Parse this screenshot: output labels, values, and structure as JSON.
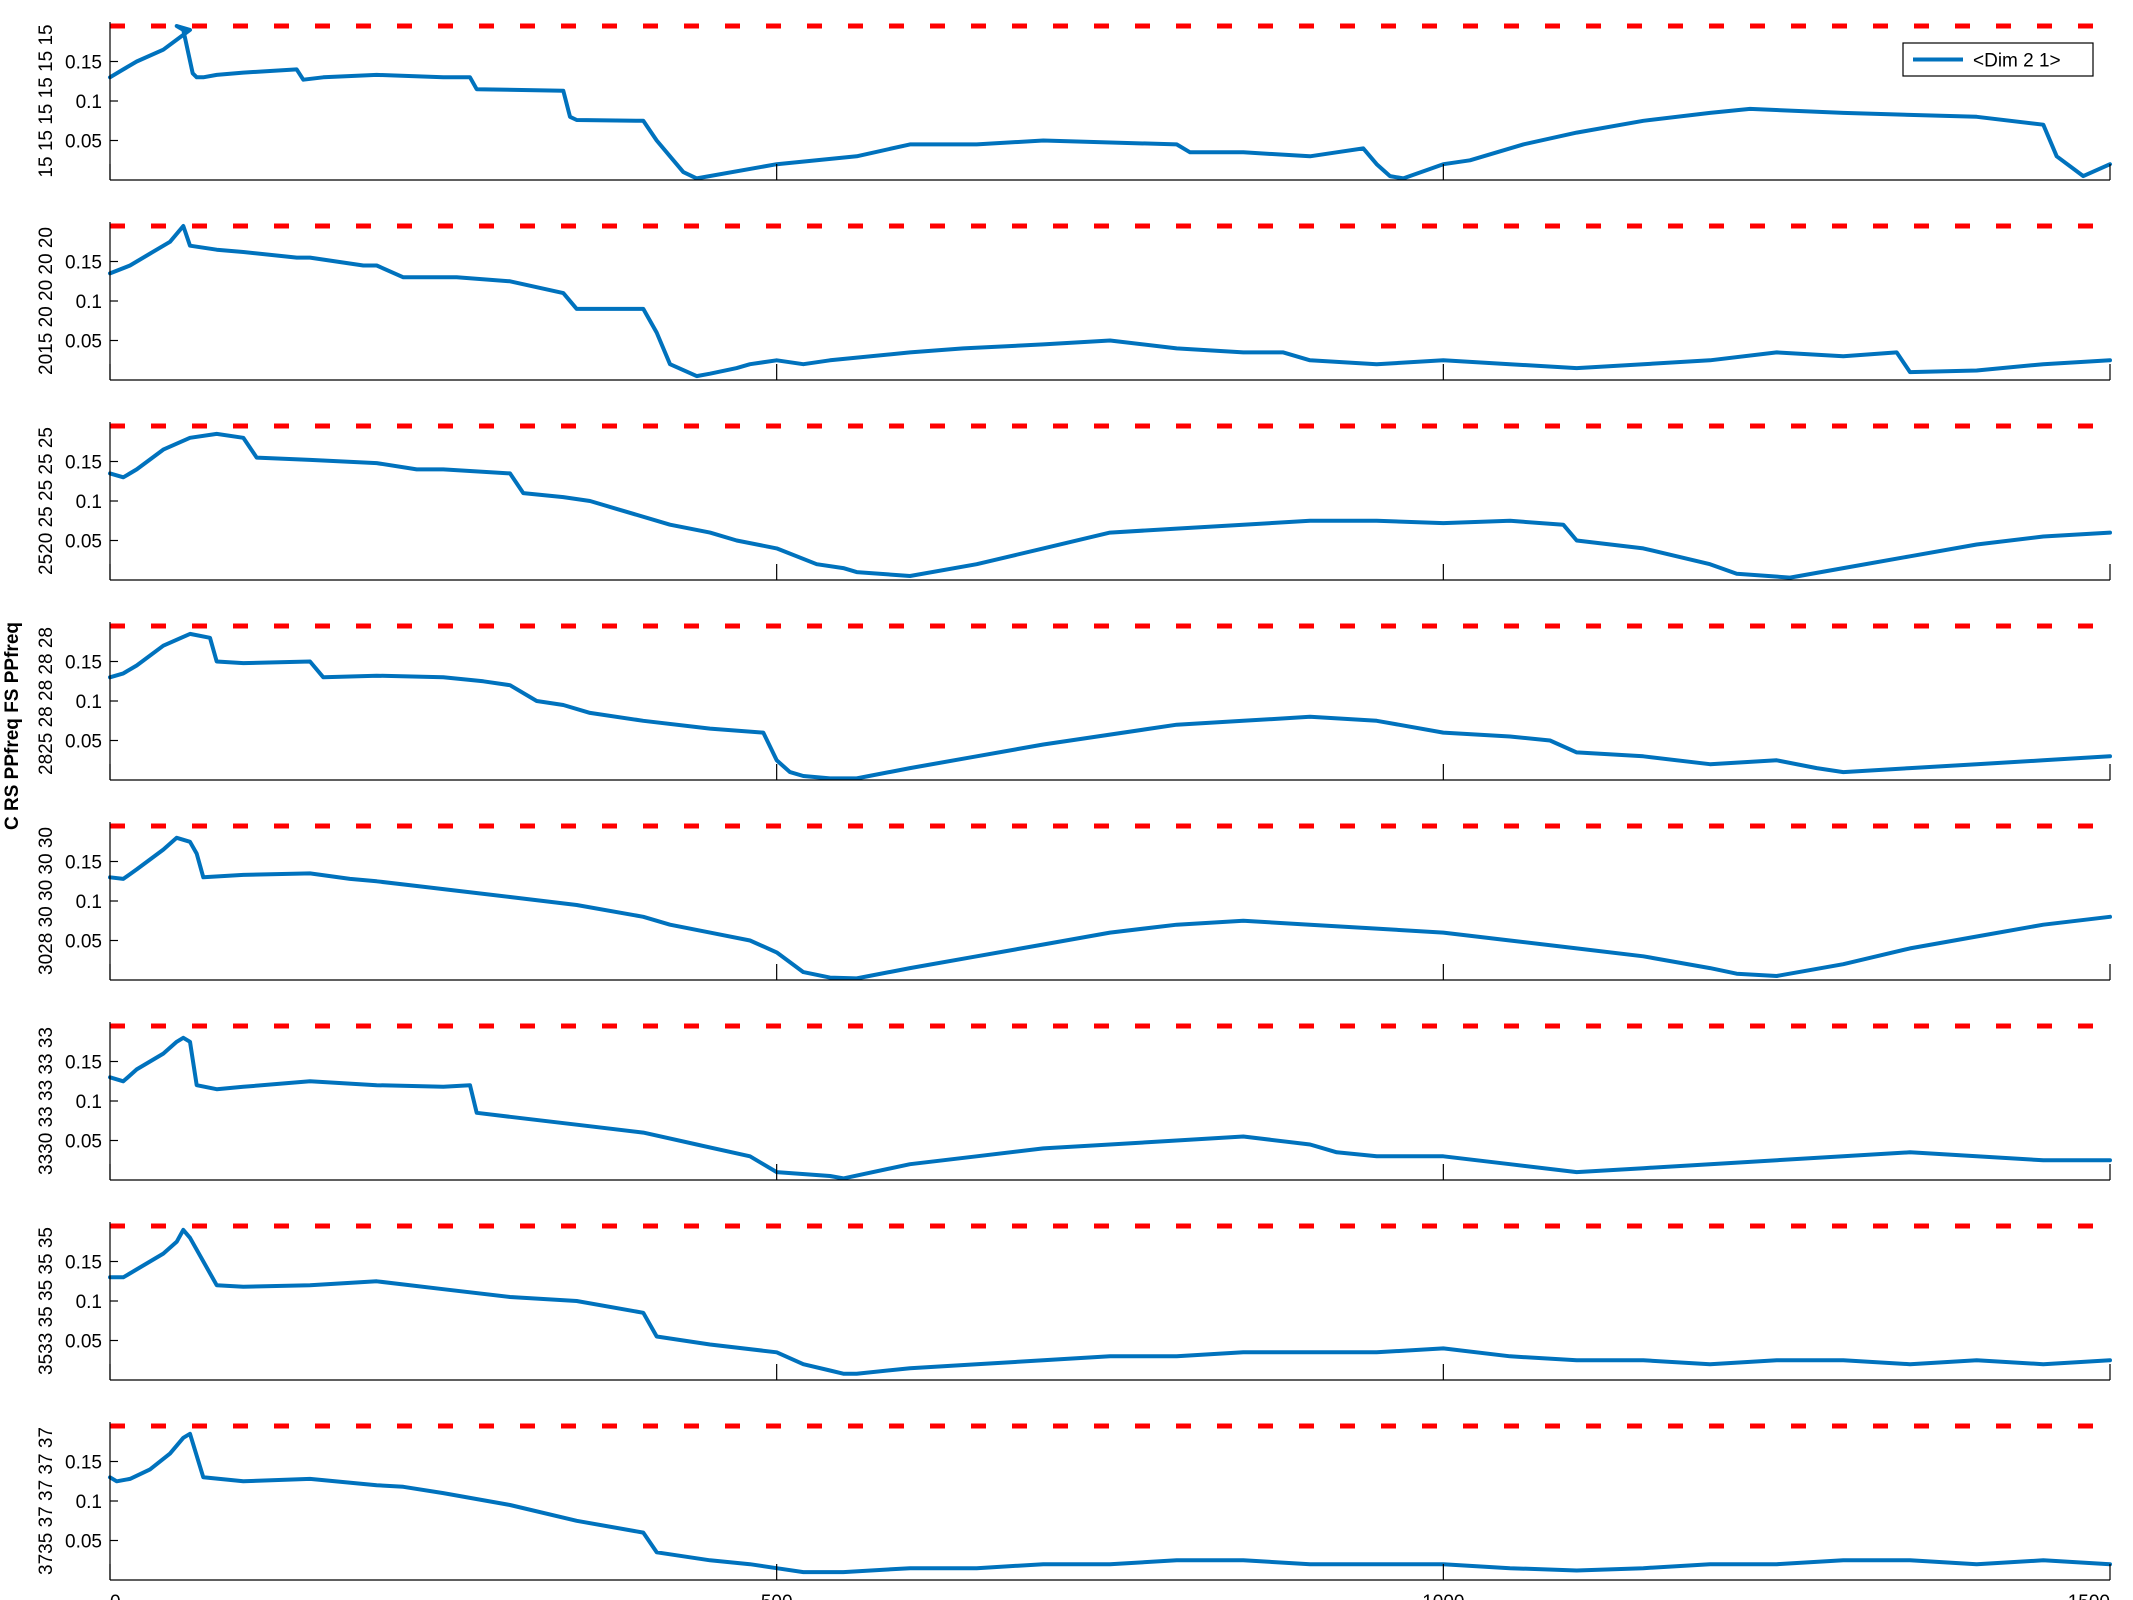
{
  "colors": {
    "series": "#0072BD",
    "threshold": "#FF0000",
    "axis": "#000000"
  },
  "y_axis_label": "C RS PPfreq FS PPfreq",
  "left_edge_labels": [
    "15 15 15 15 15 15",
    "2015 20 20 20 20",
    "2520 25 25 25 25",
    "2825 28 28 28 28",
    "3028 30 30 30 30",
    "3330 33 33 33 33",
    "3533 35 35 35 35",
    "3735 37 37 37 37"
  ],
  "chart_data": {
    "type": "line",
    "x_ticks": [
      0,
      500,
      1000,
      1500
    ],
    "y_ticks": [
      0.05,
      0.1,
      0.15
    ],
    "xlim": [
      0,
      1500
    ],
    "ylim": [
      0,
      0.2
    ],
    "legend": {
      "label": "<Dim 2 1>",
      "placement": "top-right",
      "panel": 0
    },
    "threshold": {
      "value": 0.195,
      "style": "dashed"
    },
    "panels": [
      {
        "series": {
          "x": [
            0,
            10,
            20,
            40,
            60,
            50,
            55,
            62,
            65,
            70,
            80,
            100,
            120,
            140,
            145,
            160,
            200,
            250,
            270,
            275,
            340,
            345,
            350,
            400,
            410,
            420,
            430,
            440,
            500,
            560,
            600,
            650,
            700,
            800,
            810,
            850,
            900,
            920,
            940,
            950,
            960,
            970,
            1000,
            1020,
            1060,
            1100,
            1150,
            1200,
            1230,
            1300,
            1400,
            1450,
            1460,
            1480,
            1500
          ],
          "y": [
            0.13,
            0.14,
            0.15,
            0.165,
            0.19,
            0.195,
            0.19,
            0.135,
            0.13,
            0.13,
            0.133,
            0.136,
            0.138,
            0.14,
            0.127,
            0.13,
            0.133,
            0.13,
            0.13,
            0.115,
            0.113,
            0.08,
            0.076,
            0.075,
            0.05,
            0.03,
            0.01,
            0.002,
            0.02,
            0.03,
            0.045,
            0.045,
            0.05,
            0.045,
            0.035,
            0.035,
            0.03,
            0.035,
            0.04,
            0.02,
            0.005,
            0.002,
            0.02,
            0.025,
            0.045,
            0.06,
            0.075,
            0.085,
            0.09,
            0.085,
            0.08,
            0.07,
            0.03,
            0.005,
            0.02
          ]
        }
      },
      {
        "series": {
          "x": [
            0,
            15,
            30,
            45,
            55,
            60,
            80,
            100,
            140,
            150,
            190,
            200,
            220,
            260,
            300,
            340,
            350,
            400,
            410,
            420,
            440,
            450,
            470,
            480,
            500,
            520,
            540,
            600,
            640,
            700,
            750,
            800,
            850,
            880,
            900,
            950,
            1000,
            1050,
            1100,
            1150,
            1200,
            1250,
            1300,
            1340,
            1350,
            1400,
            1450,
            1500
          ],
          "y": [
            0.135,
            0.145,
            0.16,
            0.175,
            0.195,
            0.17,
            0.165,
            0.162,
            0.155,
            0.155,
            0.145,
            0.145,
            0.13,
            0.13,
            0.125,
            0.11,
            0.09,
            0.09,
            0.06,
            0.02,
            0.005,
            0.008,
            0.015,
            0.02,
            0.025,
            0.02,
            0.025,
            0.035,
            0.04,
            0.045,
            0.05,
            0.04,
            0.035,
            0.035,
            0.025,
            0.02,
            0.025,
            0.02,
            0.015,
            0.02,
            0.025,
            0.035,
            0.03,
            0.035,
            0.01,
            0.012,
            0.02,
            0.025
          ]
        }
      },
      {
        "series": {
          "x": [
            0,
            10,
            20,
            40,
            60,
            80,
            100,
            110,
            150,
            200,
            230,
            250,
            300,
            310,
            340,
            360,
            380,
            420,
            450,
            470,
            500,
            530,
            550,
            560,
            600,
            650,
            700,
            750,
            800,
            850,
            900,
            950,
            1000,
            1050,
            1090,
            1100,
            1150,
            1200,
            1220,
            1260,
            1300,
            1350,
            1400,
            1450,
            1500
          ],
          "y": [
            0.135,
            0.13,
            0.14,
            0.165,
            0.18,
            0.185,
            0.18,
            0.155,
            0.152,
            0.148,
            0.14,
            0.14,
            0.135,
            0.11,
            0.105,
            0.1,
            0.09,
            0.07,
            0.06,
            0.05,
            0.04,
            0.02,
            0.015,
            0.01,
            0.005,
            0.02,
            0.04,
            0.06,
            0.065,
            0.07,
            0.075,
            0.075,
            0.072,
            0.075,
            0.07,
            0.05,
            0.04,
            0.02,
            0.008,
            0.003,
            0.015,
            0.03,
            0.045,
            0.055,
            0.06
          ]
        }
      },
      {
        "series": {
          "x": [
            0,
            10,
            20,
            40,
            60,
            75,
            80,
            100,
            150,
            160,
            200,
            250,
            280,
            300,
            320,
            340,
            360,
            400,
            450,
            490,
            500,
            510,
            520,
            540,
            560,
            600,
            650,
            700,
            800,
            850,
            900,
            950,
            1000,
            1050,
            1080,
            1100,
            1150,
            1200,
            1250,
            1280,
            1300,
            1350,
            1400,
            1450,
            1500
          ],
          "y": [
            0.13,
            0.135,
            0.145,
            0.17,
            0.185,
            0.18,
            0.15,
            0.148,
            0.15,
            0.13,
            0.132,
            0.13,
            0.125,
            0.12,
            0.1,
            0.095,
            0.085,
            0.075,
            0.065,
            0.06,
            0.025,
            0.01,
            0.005,
            0.002,
            0.002,
            0.015,
            0.03,
            0.045,
            0.07,
            0.075,
            0.08,
            0.075,
            0.06,
            0.055,
            0.05,
            0.035,
            0.03,
            0.02,
            0.025,
            0.015,
            0.01,
            0.015,
            0.02,
            0.025,
            0.03
          ]
        }
      },
      {
        "series": {
          "x": [
            0,
            10,
            20,
            40,
            50,
            60,
            65,
            70,
            100,
            150,
            180,
            200,
            250,
            300,
            350,
            400,
            420,
            450,
            480,
            500,
            520,
            540,
            560,
            600,
            650,
            700,
            750,
            800,
            850,
            900,
            950,
            1000,
            1050,
            1100,
            1150,
            1200,
            1220,
            1250,
            1300,
            1350,
            1400,
            1450,
            1500
          ],
          "y": [
            0.13,
            0.128,
            0.14,
            0.165,
            0.18,
            0.175,
            0.16,
            0.13,
            0.133,
            0.135,
            0.128,
            0.125,
            0.115,
            0.105,
            0.095,
            0.08,
            0.07,
            0.06,
            0.05,
            0.035,
            0.01,
            0.003,
            0.002,
            0.015,
            0.03,
            0.045,
            0.06,
            0.07,
            0.075,
            0.07,
            0.065,
            0.06,
            0.05,
            0.04,
            0.03,
            0.015,
            0.008,
            0.005,
            0.02,
            0.04,
            0.055,
            0.07,
            0.08
          ]
        }
      },
      {
        "series": {
          "x": [
            0,
            10,
            20,
            40,
            50,
            55,
            60,
            65,
            80,
            100,
            150,
            200,
            250,
            270,
            275,
            300,
            350,
            400,
            440,
            480,
            490,
            500,
            540,
            550,
            600,
            650,
            700,
            750,
            800,
            850,
            900,
            920,
            950,
            1000,
            1050,
            1100,
            1150,
            1200,
            1300,
            1350,
            1400,
            1450,
            1500
          ],
          "y": [
            0.13,
            0.125,
            0.14,
            0.16,
            0.175,
            0.18,
            0.175,
            0.12,
            0.115,
            0.118,
            0.125,
            0.12,
            0.118,
            0.12,
            0.085,
            0.08,
            0.07,
            0.06,
            0.045,
            0.03,
            0.02,
            0.01,
            0.005,
            0.002,
            0.02,
            0.03,
            0.04,
            0.045,
            0.05,
            0.055,
            0.045,
            0.035,
            0.03,
            0.03,
            0.02,
            0.01,
            0.015,
            0.02,
            0.03,
            0.035,
            0.03,
            0.025,
            0.025
          ]
        }
      },
      {
        "series": {
          "x": [
            0,
            10,
            20,
            40,
            50,
            55,
            60,
            80,
            100,
            150,
            200,
            250,
            300,
            350,
            400,
            410,
            450,
            500,
            520,
            540,
            550,
            560,
            600,
            650,
            700,
            750,
            800,
            850,
            900,
            950,
            1000,
            1050,
            1100,
            1150,
            1200,
            1250,
            1300,
            1350,
            1400,
            1450,
            1500
          ],
          "y": [
            0.13,
            0.13,
            0.14,
            0.16,
            0.175,
            0.19,
            0.18,
            0.12,
            0.118,
            0.12,
            0.125,
            0.115,
            0.105,
            0.1,
            0.085,
            0.055,
            0.045,
            0.035,
            0.02,
            0.012,
            0.008,
            0.008,
            0.015,
            0.02,
            0.025,
            0.03,
            0.03,
            0.035,
            0.035,
            0.035,
            0.04,
            0.03,
            0.025,
            0.025,
            0.02,
            0.025,
            0.025,
            0.02,
            0.025,
            0.02,
            0.025
          ]
        }
      },
      {
        "series": {
          "x": [
            0,
            5,
            15,
            30,
            45,
            55,
            60,
            70,
            100,
            150,
            200,
            220,
            250,
            300,
            350,
            400,
            410,
            450,
            480,
            500,
            520,
            550,
            600,
            650,
            700,
            750,
            800,
            850,
            900,
            950,
            1000,
            1050,
            1100,
            1150,
            1200,
            1250,
            1300,
            1350,
            1400,
            1450,
            1500
          ],
          "y": [
            0.13,
            0.125,
            0.128,
            0.14,
            0.16,
            0.18,
            0.185,
            0.13,
            0.125,
            0.128,
            0.12,
            0.118,
            0.11,
            0.095,
            0.075,
            0.06,
            0.035,
            0.025,
            0.02,
            0.015,
            0.01,
            0.01,
            0.015,
            0.015,
            0.02,
            0.02,
            0.025,
            0.025,
            0.02,
            0.02,
            0.02,
            0.015,
            0.012,
            0.015,
            0.02,
            0.02,
            0.025,
            0.025,
            0.02,
            0.025,
            0.02
          ]
        }
      }
    ]
  }
}
